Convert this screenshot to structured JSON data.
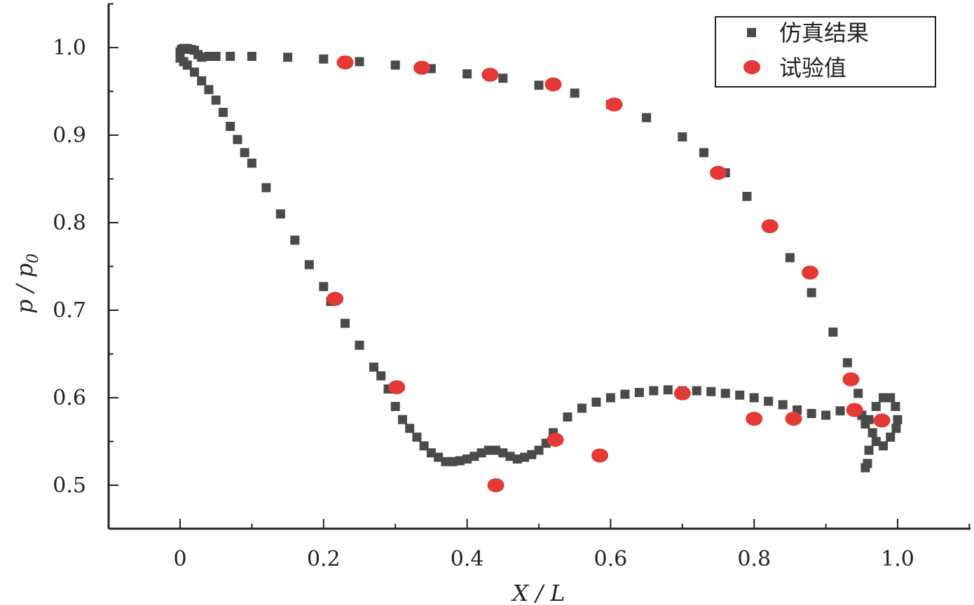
{
  "chart_data": {
    "type": "scatter",
    "title": "",
    "xlabel": "X / L",
    "ylabel_main": "p / p",
    "ylabel_sub": "0",
    "xlim": [
      -0.1,
      1.1
    ],
    "ylim": [
      0.45,
      1.05
    ],
    "x_ticks": [
      0,
      0.2,
      0.4,
      0.6,
      0.8,
      1.0
    ],
    "x_tick_labels": [
      "0",
      "0.2",
      "0.4",
      "0.6",
      "0.8",
      "1.0"
    ],
    "y_ticks": [
      0.5,
      0.6,
      0.7,
      0.8,
      0.9,
      1.0
    ],
    "y_tick_labels": [
      "0.5",
      "0.6",
      "0.7",
      "0.8",
      "0.9",
      "1.0"
    ],
    "grid": false,
    "legend_position": "top-right",
    "colors": {
      "simulation": "#4a4a4a",
      "experiment": "#e53935",
      "axis": "#222222"
    },
    "series": [
      {
        "name": "仿真结果",
        "marker": "square",
        "x": [
          0.0,
          0.002,
          0.005,
          0.01,
          0.015,
          0.02,
          0.025,
          0.03,
          0.04,
          0.05,
          0.07,
          0.1,
          0.15,
          0.2,
          0.23,
          0.25,
          0.3,
          0.35,
          0.4,
          0.45,
          0.5,
          0.55,
          0.6,
          0.65,
          0.7,
          0.73,
          0.76,
          0.79,
          0.82,
          0.85,
          0.88,
          0.91,
          0.93,
          0.945,
          0.955,
          0.96,
          0.97,
          0.98,
          0.99,
          0.997,
          1.0,
          0.998,
          0.99,
          0.98,
          0.97,
          0.965,
          0.96,
          0.958,
          0.955,
          0.95,
          0.94,
          0.92,
          0.9,
          0.88,
          0.86,
          0.84,
          0.82,
          0.8,
          0.78,
          0.76,
          0.74,
          0.72,
          0.7,
          0.68,
          0.66,
          0.64,
          0.62,
          0.6,
          0.58,
          0.56,
          0.54,
          0.52,
          0.51,
          0.5,
          0.49,
          0.48,
          0.47,
          0.46,
          0.45,
          0.44,
          0.43,
          0.42,
          0.41,
          0.4,
          0.39,
          0.38,
          0.37,
          0.36,
          0.35,
          0.34,
          0.33,
          0.32,
          0.31,
          0.3,
          0.29,
          0.28,
          0.27,
          0.25,
          0.23,
          0.21,
          0.2,
          0.18,
          0.16,
          0.14,
          0.12,
          0.1,
          0.09,
          0.08,
          0.07,
          0.06,
          0.05,
          0.04,
          0.03,
          0.02,
          0.01,
          0.005,
          0.0
        ],
        "y": [
          0.995,
          0.998,
          0.999,
          0.999,
          0.998,
          0.997,
          0.992,
          0.989,
          0.99,
          0.99,
          0.99,
          0.99,
          0.989,
          0.987,
          0.985,
          0.984,
          0.98,
          0.976,
          0.97,
          0.965,
          0.957,
          0.948,
          0.935,
          0.92,
          0.898,
          0.88,
          0.857,
          0.83,
          0.795,
          0.76,
          0.72,
          0.675,
          0.64,
          0.605,
          0.57,
          0.575,
          0.59,
          0.6,
          0.6,
          0.59,
          0.575,
          0.565,
          0.555,
          0.545,
          0.55,
          0.56,
          0.54,
          0.525,
          0.52,
          0.58,
          0.587,
          0.585,
          0.58,
          0.582,
          0.586,
          0.592,
          0.596,
          0.6,
          0.603,
          0.605,
          0.607,
          0.608,
          0.608,
          0.609,
          0.608,
          0.606,
          0.604,
          0.6,
          0.595,
          0.588,
          0.578,
          0.56,
          0.548,
          0.54,
          0.535,
          0.532,
          0.53,
          0.533,
          0.537,
          0.54,
          0.54,
          0.537,
          0.533,
          0.53,
          0.528,
          0.527,
          0.527,
          0.532,
          0.537,
          0.545,
          0.555,
          0.565,
          0.575,
          0.59,
          0.61,
          0.625,
          0.635,
          0.66,
          0.685,
          0.71,
          0.727,
          0.752,
          0.78,
          0.81,
          0.84,
          0.868,
          0.88,
          0.895,
          0.91,
          0.926,
          0.94,
          0.952,
          0.962,
          0.972,
          0.98,
          0.984,
          0.988
        ]
      },
      {
        "name": "试验值",
        "marker": "circle",
        "x": [
          0.23,
          0.337,
          0.432,
          0.52,
          0.605,
          0.75,
          0.822,
          0.878,
          0.216,
          0.302,
          0.44,
          0.523,
          0.585,
          0.7,
          0.8,
          0.855,
          0.935,
          0.94,
          0.978
        ],
        "y": [
          0.983,
          0.977,
          0.969,
          0.958,
          0.935,
          0.857,
          0.796,
          0.743,
          0.713,
          0.612,
          0.5,
          0.552,
          0.534,
          0.605,
          0.576,
          0.576,
          0.621,
          0.586,
          0.574
        ]
      }
    ]
  }
}
